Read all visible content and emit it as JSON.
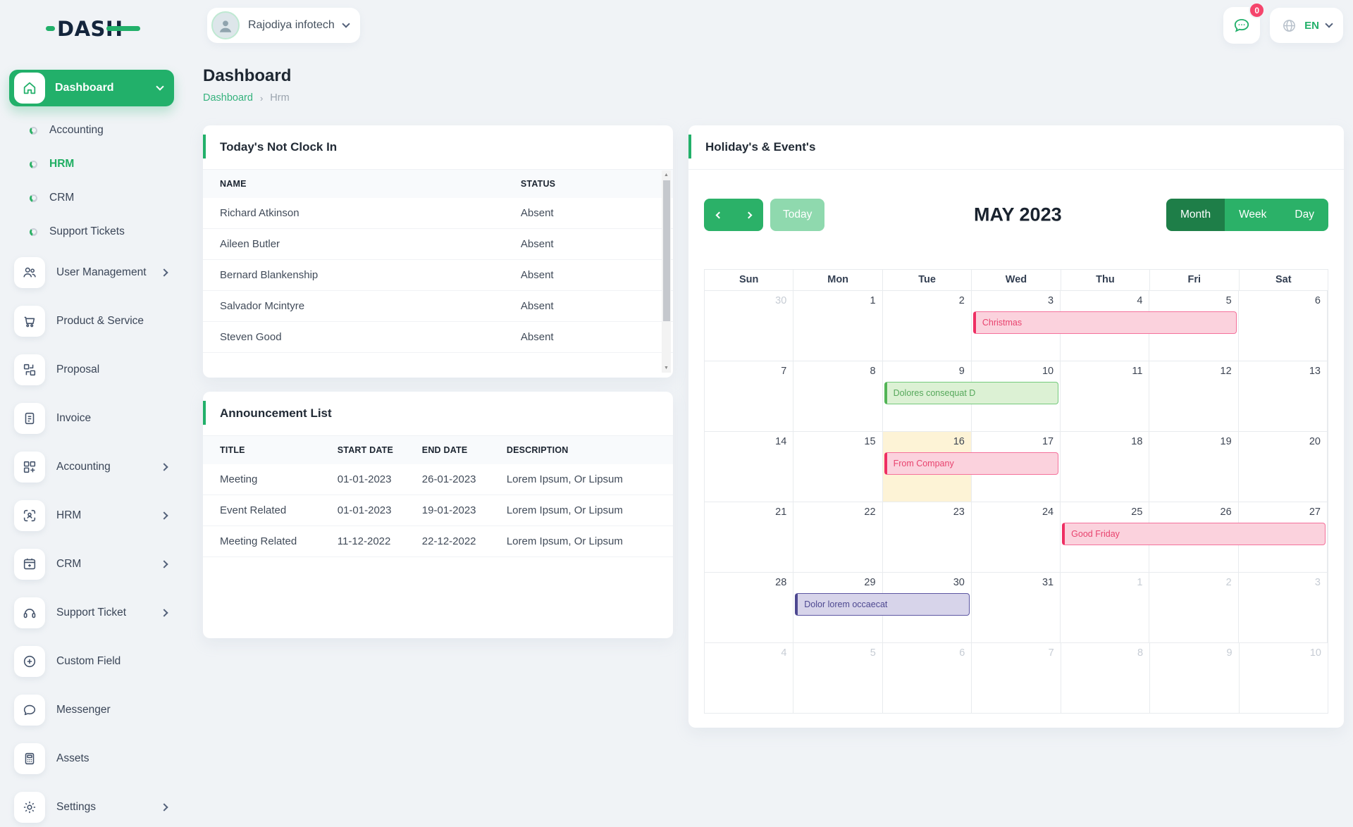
{
  "app": {
    "logo_text": "DASH"
  },
  "topbar": {
    "company": "Rajodiya infotech",
    "notification_badge": "0",
    "language": "EN"
  },
  "sidebar": {
    "dashboard": {
      "label": "Dashboard"
    },
    "dashboard_children": [
      {
        "label": "Accounting",
        "active": false
      },
      {
        "label": "HRM",
        "active": true
      },
      {
        "label": "CRM",
        "active": false
      },
      {
        "label": "Support Tickets",
        "active": false
      }
    ],
    "items": [
      {
        "label": "User Management",
        "icon": "users-icon",
        "expandable": true
      },
      {
        "label": "Product & Service",
        "icon": "cart-icon",
        "expandable": false
      },
      {
        "label": "Proposal",
        "icon": "proposal-icon",
        "expandable": false
      },
      {
        "label": "Invoice",
        "icon": "invoice-icon",
        "expandable": false
      },
      {
        "label": "Accounting",
        "icon": "accounting-icon",
        "expandable": true
      },
      {
        "label": "HRM",
        "icon": "hrm-icon",
        "expandable": true
      },
      {
        "label": "CRM",
        "icon": "crm-icon",
        "expandable": true
      },
      {
        "label": "Support Ticket",
        "icon": "headset-icon",
        "expandable": true
      },
      {
        "label": "Custom Field",
        "icon": "plus-circle-icon",
        "expandable": false
      },
      {
        "label": "Messenger",
        "icon": "chat-icon",
        "expandable": false
      },
      {
        "label": "Assets",
        "icon": "calculator-icon",
        "expandable": false
      },
      {
        "label": "Settings",
        "icon": "gear-icon",
        "expandable": true
      }
    ]
  },
  "page": {
    "title": "Dashboard",
    "breadcrumb": [
      "Dashboard",
      "Hrm"
    ]
  },
  "clockin_card": {
    "title": "Today's Not Clock In",
    "columns": [
      "NAME",
      "STATUS"
    ],
    "rows": [
      [
        "Richard Atkinson",
        "Absent"
      ],
      [
        "Aileen Butler",
        "Absent"
      ],
      [
        "Bernard Blankenship",
        "Absent"
      ],
      [
        "Salvador Mcintyre",
        "Absent"
      ],
      [
        "Steven Good",
        "Absent"
      ]
    ]
  },
  "announcement_card": {
    "title": "Announcement List",
    "columns": [
      "TITLE",
      "START DATE",
      "END DATE",
      "DESCRIPTION"
    ],
    "rows": [
      [
        "Meeting",
        "01-01-2023",
        "26-01-2023",
        "Lorem Ipsum, Or Lipsum"
      ],
      [
        "Event Related",
        "01-01-2023",
        "19-01-2023",
        "Lorem Ipsum, Or Lipsum"
      ],
      [
        "Meeting Related",
        "11-12-2022",
        "22-12-2022",
        "Lorem Ipsum, Or Lipsum"
      ]
    ]
  },
  "calendar_card": {
    "title": "Holiday's & Event's",
    "toolbar": {
      "today_label": "Today",
      "month_title": "MAY 2023",
      "views": [
        "Month",
        "Week",
        "Day"
      ],
      "active_view": "Month"
    },
    "week_days": [
      "Sun",
      "Mon",
      "Tue",
      "Wed",
      "Thu",
      "Fri",
      "Sat"
    ],
    "weeks": [
      [
        {
          "d": 30,
          "out": true
        },
        {
          "d": 1
        },
        {
          "d": 2
        },
        {
          "d": 3
        },
        {
          "d": 4
        },
        {
          "d": 5
        },
        {
          "d": 6
        }
      ],
      [
        {
          "d": 7
        },
        {
          "d": 8
        },
        {
          "d": 9
        },
        {
          "d": 10
        },
        {
          "d": 11
        },
        {
          "d": 12
        },
        {
          "d": 13
        }
      ],
      [
        {
          "d": 14
        },
        {
          "d": 15
        },
        {
          "d": 16
        },
        {
          "d": 17
        },
        {
          "d": 18
        },
        {
          "d": 19
        },
        {
          "d": 20
        }
      ],
      [
        {
          "d": 21
        },
        {
          "d": 22
        },
        {
          "d": 23
        },
        {
          "d": 24
        },
        {
          "d": 25
        },
        {
          "d": 26
        },
        {
          "d": 27
        }
      ],
      [
        {
          "d": 28
        },
        {
          "d": 29
        },
        {
          "d": 30
        },
        {
          "d": 31
        },
        {
          "d": 1,
          "out": true
        },
        {
          "d": 2,
          "out": true
        },
        {
          "d": 3,
          "out": true
        }
      ],
      [
        {
          "d": 4,
          "out": true
        },
        {
          "d": 5,
          "out": true
        },
        {
          "d": 6,
          "out": true
        },
        {
          "d": 7,
          "out": true
        },
        {
          "d": 8,
          "out": true
        },
        {
          "d": 9,
          "out": true
        },
        {
          "d": 10,
          "out": true
        }
      ]
    ],
    "today_cell": {
      "week": 2,
      "col": 2
    },
    "events": [
      {
        "title": "Christmas",
        "week": 0,
        "col": 3,
        "span": 3,
        "color": "pink"
      },
      {
        "title": "Dolores consequat D",
        "week": 1,
        "col": 2,
        "span": 2,
        "color": "green"
      },
      {
        "title": "From Company",
        "week": 2,
        "col": 2,
        "span": 2,
        "color": "pink"
      },
      {
        "title": "Good Friday",
        "week": 3,
        "col": 4,
        "span": 3,
        "color": "pink"
      },
      {
        "title": "Dolor lorem occaecat",
        "week": 4,
        "col": 1,
        "span": 2,
        "color": "purple"
      }
    ]
  },
  "colors": {
    "primary_green": "#22b06a",
    "button_green": "#2bb168",
    "active_view_green": "#1e7e48",
    "today_button_green": "#8fd9ae",
    "logo_navy": "#14253c",
    "badge_pink": "#f5456c",
    "today_cell_yellow": "#fdf3d6",
    "event_pink": {
      "accent": "#ee2f63",
      "border": "#f4719b",
      "bg": "#fbd2dd",
      "text": "#e8436e"
    },
    "event_green": {
      "accent": "#52b456",
      "border": "#74ca7c",
      "bg": "#dcf1d4",
      "text": "#56a85b"
    },
    "event_purple": {
      "accent": "#4d4890",
      "border": "#5c56a2",
      "bg": "#d7d4ea",
      "text": "#4d4890"
    }
  }
}
